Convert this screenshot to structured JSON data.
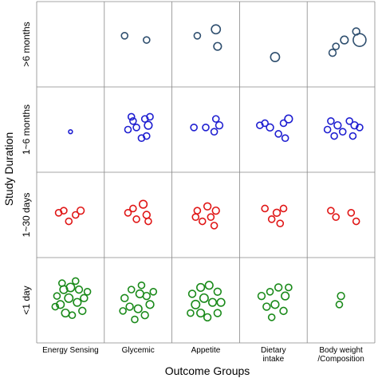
{
  "chart_data": {
    "type": "scatter",
    "title": "",
    "xlabel": "Outcome Groups",
    "ylabel": "Study Duration",
    "columns": [
      "Energy Sensing",
      "Glycemic",
      "Appetite",
      "Dietary\nintake",
      "Body weight\n/Composition"
    ],
    "rows": [
      ">6 months",
      "1~6 months",
      "1~30 days",
      "<1 day"
    ],
    "grid": true,
    "series": [
      {
        "row": ">6 months",
        "color": "#2f4f6f",
        "cells": [
          [],
          [
            [
              -0.4,
              0.2,
              1
            ],
            [
              0.25,
              0.1,
              1
            ]
          ],
          [
            [
              -0.25,
              0.2,
              1
            ],
            [
              0.3,
              0.35,
              1.4
            ],
            [
              0.35,
              -0.05,
              1.2
            ]
          ],
          [
            [
              0.05,
              -0.3,
              1.4
            ]
          ],
          [
            [
              -0.25,
              -0.2,
              1.1
            ],
            [
              0.1,
              0.1,
              1.2
            ],
            [
              0.45,
              0.3,
              1.1
            ],
            [
              0.55,
              0.1,
              2.0
            ],
            [
              -0.15,
              -0.05,
              1
            ]
          ]
        ]
      },
      {
        "row": "1~6 months",
        "color": "#1f1fd1",
        "cells": [
          [
            [
              0.0,
              -0.05,
              0.6
            ]
          ],
          [
            [
              -0.2,
              0.3,
              1
            ],
            [
              0.2,
              0.25,
              1
            ],
            [
              -0.05,
              0.05,
              1
            ],
            [
              0.3,
              0.1,
              1.2
            ],
            [
              0.25,
              -0.15,
              1
            ],
            [
              -0.3,
              0.0,
              1
            ],
            [
              0.1,
              -0.2,
              1
            ],
            [
              -0.15,
              0.2,
              1
            ],
            [
              0.35,
              0.3,
              1
            ]
          ],
          [
            [
              -0.35,
              0.05,
              1
            ],
            [
              0.0,
              0.05,
              1
            ],
            [
              0.4,
              0.1,
              1.1
            ],
            [
              0.3,
              0.25,
              1
            ],
            [
              0.25,
              -0.05,
              1
            ]
          ],
          [
            [
              -0.4,
              0.1,
              1
            ],
            [
              -0.1,
              0.05,
              1.1
            ],
            [
              0.3,
              0.15,
              1
            ],
            [
              0.45,
              0.25,
              1.2
            ],
            [
              0.15,
              -0.1,
              1
            ],
            [
              0.35,
              -0.2,
              1
            ],
            [
              -0.25,
              0.15,
              1
            ]
          ],
          [
            [
              -0.4,
              0.0,
              1
            ],
            [
              -0.1,
              0.1,
              1.1
            ],
            [
              0.05,
              -0.05,
              1
            ],
            [
              0.25,
              0.2,
              1
            ],
            [
              0.4,
              0.1,
              1.1
            ],
            [
              -0.3,
              0.2,
              1
            ],
            [
              -0.2,
              -0.15,
              1
            ],
            [
              0.35,
              -0.15,
              1
            ],
            [
              0.55,
              0.05,
              1
            ]
          ]
        ]
      },
      {
        "row": "1~30 days",
        "color": "#e01616",
        "cells": [
          [
            [
              -0.35,
              0.05,
              1
            ],
            [
              -0.05,
              -0.15,
              1
            ],
            [
              0.15,
              0.0,
              1
            ],
            [
              0.3,
              0.1,
              1.1
            ],
            [
              -0.2,
              0.1,
              1
            ]
          ],
          [
            [
              -0.3,
              0.05,
              1
            ],
            [
              0.15,
              0.25,
              1.2
            ],
            [
              0.25,
              0.0,
              1.1
            ],
            [
              -0.05,
              -0.1,
              1
            ],
            [
              0.3,
              -0.15,
              1
            ],
            [
              -0.15,
              0.15,
              1
            ]
          ],
          [
            [
              -0.25,
              0.1,
              1
            ],
            [
              0.05,
              0.2,
              1.1
            ],
            [
              0.3,
              0.1,
              1.1
            ],
            [
              0.15,
              -0.05,
              1
            ],
            [
              -0.1,
              -0.15,
              1
            ],
            [
              0.25,
              -0.25,
              1
            ],
            [
              -0.3,
              -0.05,
              1
            ]
          ],
          [
            [
              -0.25,
              0.15,
              1
            ],
            [
              0.1,
              0.05,
              1.1
            ],
            [
              0.3,
              0.15,
              1
            ],
            [
              -0.05,
              -0.1,
              1
            ],
            [
              0.2,
              -0.2,
              1
            ]
          ],
          [
            [
              -0.3,
              0.1,
              1
            ],
            [
              -0.15,
              -0.05,
              1
            ],
            [
              0.3,
              0.05,
              1
            ],
            [
              0.45,
              -0.15,
              1
            ]
          ]
        ]
      },
      {
        "row": "<1 day",
        "color": "#1a8a1a",
        "cells": [
          [
            [
              -0.4,
              0.1,
              1
            ],
            [
              -0.2,
              0.25,
              1.2
            ],
            [
              0.0,
              0.3,
              1.3
            ],
            [
              0.25,
              0.25,
              1.1
            ],
            [
              0.4,
              0.05,
              1.1
            ],
            [
              -0.3,
              -0.1,
              1.2
            ],
            [
              -0.05,
              0.05,
              1.3
            ],
            [
              0.2,
              -0.05,
              1.2
            ],
            [
              0.35,
              -0.25,
              1.1
            ],
            [
              -0.15,
              -0.3,
              1.2
            ],
            [
              0.05,
              -0.35,
              1
            ],
            [
              -0.45,
              -0.15,
              1
            ],
            [
              0.5,
              0.2,
              1
            ],
            [
              -0.25,
              0.4,
              1
            ],
            [
              0.15,
              0.45,
              1
            ]
          ],
          [
            [
              -0.4,
              0.05,
              1.1
            ],
            [
              -0.2,
              0.25,
              1
            ],
            [
              0.05,
              0.15,
              1.2
            ],
            [
              0.25,
              0.1,
              1.1
            ],
            [
              0.35,
              -0.1,
              1.2
            ],
            [
              -0.25,
              -0.15,
              1.1
            ],
            [
              0.0,
              -0.2,
              1.2
            ],
            [
              0.2,
              -0.35,
              1.1
            ],
            [
              -0.1,
              -0.45,
              1
            ],
            [
              0.45,
              0.2,
              1
            ],
            [
              -0.45,
              -0.25,
              1
            ],
            [
              0.1,
              0.35,
              1
            ]
          ],
          [
            [
              -0.4,
              0.15,
              1.1
            ],
            [
              -0.15,
              0.3,
              1.2
            ],
            [
              0.1,
              0.35,
              1.2
            ],
            [
              0.35,
              0.2,
              1.1
            ],
            [
              0.45,
              -0.05,
              1.2
            ],
            [
              -0.3,
              -0.1,
              1.3
            ],
            [
              -0.05,
              0.05,
              1.3
            ],
            [
              0.2,
              -0.05,
              1.2
            ],
            [
              0.35,
              -0.3,
              1.1
            ],
            [
              -0.15,
              -0.3,
              1.2
            ],
            [
              0.05,
              -0.4,
              1.1
            ],
            [
              -0.45,
              -0.3,
              1
            ]
          ],
          [
            [
              -0.35,
              0.1,
              1.1
            ],
            [
              -0.1,
              0.2,
              1
            ],
            [
              0.15,
              0.3,
              1.1
            ],
            [
              0.35,
              0.1,
              1.2
            ],
            [
              -0.2,
              -0.15,
              1.1
            ],
            [
              0.05,
              -0.1,
              1.2
            ],
            [
              0.3,
              -0.25,
              1.1
            ],
            [
              -0.05,
              -0.4,
              1
            ],
            [
              0.45,
              0.3,
              1
            ]
          ],
          [
            [
              0.0,
              0.1,
              1.1
            ],
            [
              -0.05,
              -0.1,
              1
            ]
          ]
        ]
      }
    ]
  }
}
